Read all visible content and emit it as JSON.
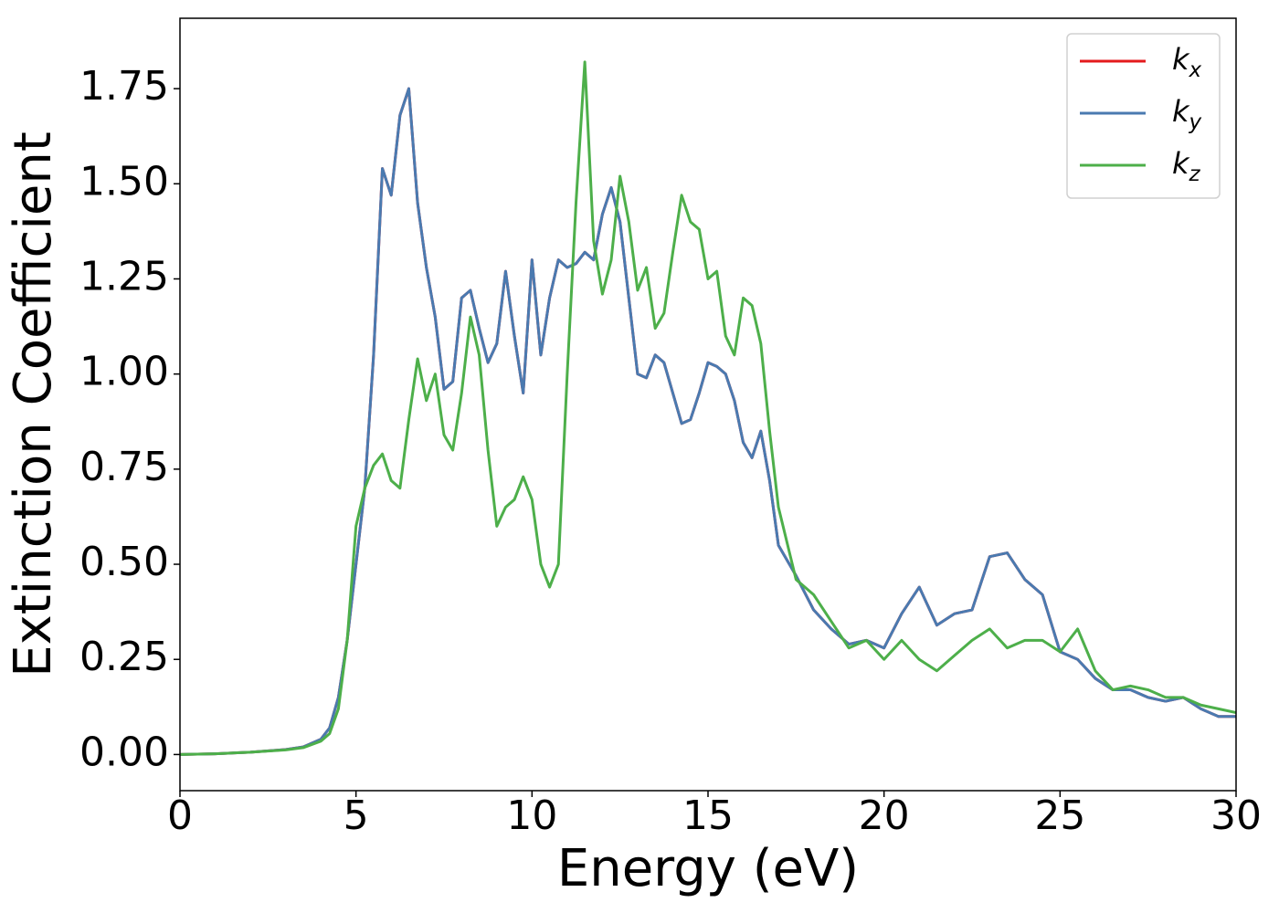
{
  "chart_data": {
    "type": "line",
    "xlabel": "Energy (eV)",
    "ylabel": "Extinction Coefficient",
    "x": [
      0,
      1,
      2,
      3,
      3.5,
      4,
      4.25,
      4.5,
      4.75,
      5,
      5.25,
      5.5,
      5.75,
      6,
      6.25,
      6.5,
      6.75,
      7,
      7.25,
      7.5,
      7.75,
      8,
      8.25,
      8.5,
      8.75,
      9,
      9.25,
      9.5,
      9.75,
      10,
      10.25,
      10.5,
      10.75,
      11,
      11.25,
      11.5,
      11.75,
      12,
      12.25,
      12.5,
      12.75,
      13,
      13.25,
      13.5,
      13.75,
      14,
      14.25,
      14.5,
      14.75,
      15,
      15.25,
      15.5,
      15.75,
      16,
      16.25,
      16.5,
      16.75,
      17,
      17.5,
      18,
      18.5,
      19,
      19.5,
      20,
      20.5,
      21,
      21.5,
      22,
      22.5,
      23,
      23.5,
      24,
      24.5,
      25,
      25.5,
      26,
      26.5,
      27,
      27.5,
      28,
      28.5,
      29,
      29.5,
      30
    ],
    "series": [
      {
        "name": "kx",
        "color": "#e41a1c",
        "values": [
          0,
          0.002,
          0.006,
          0.013,
          0.02,
          0.04,
          0.07,
          0.15,
          0.3,
          0.5,
          0.7,
          1.05,
          1.54,
          1.47,
          1.68,
          1.75,
          1.45,
          1.28,
          1.15,
          0.96,
          0.98,
          1.2,
          1.22,
          1.12,
          1.03,
          1.08,
          1.27,
          1.1,
          0.95,
          1.3,
          1.05,
          1.2,
          1.3,
          1.28,
          1.29,
          1.32,
          1.3,
          1.42,
          1.49,
          1.4,
          1.2,
          1.0,
          0.99,
          1.05,
          1.03,
          0.95,
          0.87,
          0.88,
          0.95,
          1.03,
          1.02,
          1.0,
          0.93,
          0.82,
          0.78,
          0.85,
          0.72,
          0.55,
          0.47,
          0.38,
          0.33,
          0.29,
          0.3,
          0.28,
          0.37,
          0.44,
          0.34,
          0.37,
          0.38,
          0.52,
          0.53,
          0.46,
          0.42,
          0.27,
          0.25,
          0.2,
          0.17,
          0.17,
          0.15,
          0.14,
          0.15,
          0.12,
          0.1,
          0.1
        ]
      },
      {
        "name": "ky",
        "color": "#4a7ab0",
        "values": [
          0,
          0.002,
          0.006,
          0.013,
          0.02,
          0.04,
          0.07,
          0.15,
          0.3,
          0.5,
          0.7,
          1.05,
          1.54,
          1.47,
          1.68,
          1.75,
          1.45,
          1.28,
          1.15,
          0.96,
          0.98,
          1.2,
          1.22,
          1.12,
          1.03,
          1.08,
          1.27,
          1.1,
          0.95,
          1.3,
          1.05,
          1.2,
          1.3,
          1.28,
          1.29,
          1.32,
          1.3,
          1.42,
          1.49,
          1.4,
          1.2,
          1.0,
          0.99,
          1.05,
          1.03,
          0.95,
          0.87,
          0.88,
          0.95,
          1.03,
          1.02,
          1.0,
          0.93,
          0.82,
          0.78,
          0.85,
          0.72,
          0.55,
          0.47,
          0.38,
          0.33,
          0.29,
          0.3,
          0.28,
          0.37,
          0.44,
          0.34,
          0.37,
          0.38,
          0.52,
          0.53,
          0.46,
          0.42,
          0.27,
          0.25,
          0.2,
          0.17,
          0.17,
          0.15,
          0.14,
          0.15,
          0.12,
          0.1,
          0.1
        ]
      },
      {
        "name": "kz",
        "color": "#4daf4a",
        "values": [
          0,
          0.002,
          0.006,
          0.012,
          0.018,
          0.035,
          0.055,
          0.12,
          0.3,
          0.6,
          0.7,
          0.76,
          0.79,
          0.72,
          0.7,
          0.88,
          1.04,
          0.93,
          1.0,
          0.84,
          0.8,
          0.95,
          1.15,
          1.05,
          0.8,
          0.6,
          0.65,
          0.67,
          0.73,
          0.67,
          0.5,
          0.44,
          0.5,
          1.0,
          1.45,
          1.82,
          1.35,
          1.21,
          1.3,
          1.52,
          1.4,
          1.22,
          1.28,
          1.12,
          1.16,
          1.32,
          1.47,
          1.4,
          1.38,
          1.25,
          1.27,
          1.1,
          1.05,
          1.2,
          1.18,
          1.08,
          0.85,
          0.65,
          0.46,
          0.42,
          0.35,
          0.28,
          0.3,
          0.25,
          0.3,
          0.25,
          0.22,
          0.26,
          0.3,
          0.33,
          0.28,
          0.3,
          0.3,
          0.27,
          0.33,
          0.22,
          0.17,
          0.18,
          0.17,
          0.15,
          0.15,
          0.13,
          0.12,
          0.11
        ]
      }
    ],
    "xlim": [
      0,
      30
    ],
    "xticks": [
      0,
      5,
      10,
      15,
      20,
      25,
      30
    ],
    "ylim": [
      -0.095,
      1.935
    ],
    "yticks": [
      {
        "value": 0,
        "label": "0.00"
      },
      {
        "value": 0.25,
        "label": "0.25"
      },
      {
        "value": 0.5,
        "label": "0.50"
      },
      {
        "value": 0.75,
        "label": "0.75"
      },
      {
        "value": 1.0,
        "label": "1.00"
      },
      {
        "value": 1.25,
        "label": "1.25"
      },
      {
        "value": 1.5,
        "label": "1.50"
      },
      {
        "value": 1.75,
        "label": "1.75"
      }
    ],
    "grid": false,
    "legend": "upper right"
  }
}
